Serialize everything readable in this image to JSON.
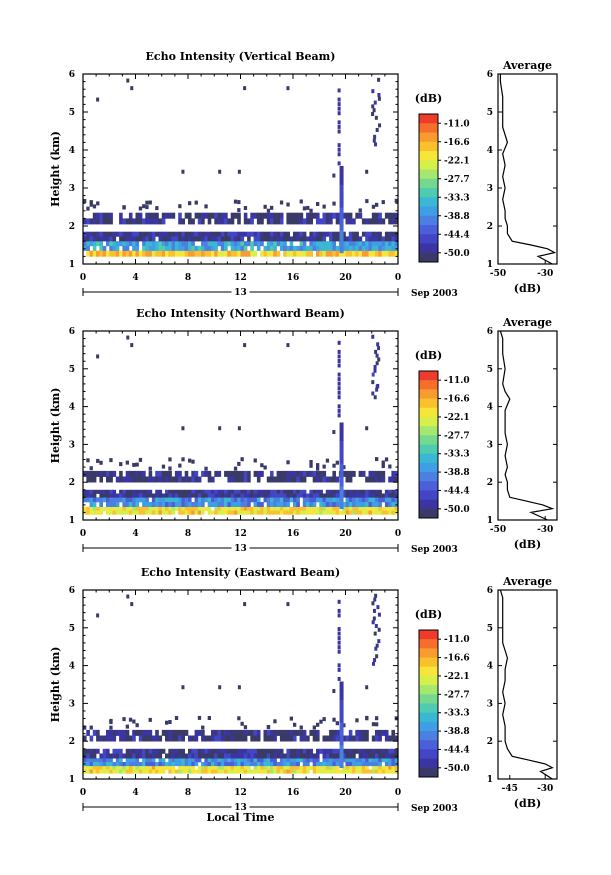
{
  "colorbar": {
    "unit_label": "(dB)",
    "tick_labels": [
      "-11.0",
      "-16.6",
      "-22.1",
      "-27.7",
      "-33.3",
      "-38.8",
      "-44.4",
      "-50.0"
    ],
    "colors": [
      "#ef3b2c",
      "#f66d2c",
      "#f99b30",
      "#fbc12d",
      "#f7e63a",
      "#d6ef4a",
      "#a6e86f",
      "#74d98f",
      "#4ecbb0",
      "#3ab8d3",
      "#3f9ee5",
      "#4b7fe0",
      "#4a5fd8",
      "#4346c4",
      "#3a35a2",
      "#3a3a68"
    ]
  },
  "chart_data": [
    {
      "type": "heatmap",
      "title": "Echo Intensity (Vertical Beam)",
      "xlabel": "",
      "ylabel": "Height (km)",
      "xlim": [
        0,
        24
      ],
      "ylim": [
        1,
        6
      ],
      "x_ticks": [
        "0",
        "4",
        "8",
        "12",
        "16",
        "20",
        "0"
      ],
      "y_ticks": [
        "1",
        "2",
        "3",
        "4",
        "5",
        "6"
      ],
      "date_bar": {
        "day": "13",
        "suffix": "Sep 2003"
      },
      "clim_db": [
        -50.0,
        -11.0
      ],
      "layers_db": [
        {
          "height_range_km": [
            1.2,
            1.35
          ],
          "value_db": -20
        },
        {
          "height_range_km": [
            1.35,
            1.6
          ],
          "value_db": -36
        },
        {
          "height_range_km": [
            1.6,
            1.85
          ],
          "value_db": -47
        },
        {
          "height_range_km": [
            2.05,
            2.35
          ],
          "value_db": -48
        }
      ],
      "average": {
        "title": "Average",
        "xlabel": "(dB)",
        "x_ticks": [
          "-50",
          "-30"
        ],
        "xlim": [
          -50,
          -25
        ],
        "height_km": [
          1.0,
          1.2,
          1.3,
          1.4,
          1.5,
          1.6,
          1.8,
          2.0,
          2.2,
          2.4,
          2.7,
          3.0,
          3.3,
          3.6,
          3.9,
          4.2,
          4.4,
          4.6,
          5.0,
          5.4,
          5.8,
          6.0
        ],
        "value_db": [
          -27,
          -33,
          -26,
          -29,
          -36,
          -44,
          -46,
          -46,
          -47,
          -47,
          -48,
          -47,
          -48,
          -47,
          -48,
          -46,
          -47,
          -48,
          -48,
          -48,
          -49,
          -49
        ]
      }
    },
    {
      "type": "heatmap",
      "title": "Echo Intensity (Northward Beam)",
      "xlabel": "",
      "ylabel": "Height (km)",
      "xlim": [
        0,
        24
      ],
      "ylim": [
        1,
        6
      ],
      "x_ticks": [
        "0",
        "4",
        "8",
        "12",
        "16",
        "20",
        "0"
      ],
      "y_ticks": [
        "1",
        "2",
        "3",
        "4",
        "5",
        "6"
      ],
      "date_bar": {
        "day": "13",
        "suffix": "Sep 2003"
      },
      "clim_db": [
        -50.0,
        -11.0
      ],
      "layers_db": [
        {
          "height_range_km": [
            1.15,
            1.35
          ],
          "value_db": -22
        },
        {
          "height_range_km": [
            1.35,
            1.6
          ],
          "value_db": -38
        },
        {
          "height_range_km": [
            1.6,
            1.8
          ],
          "value_db": -47
        },
        {
          "height_range_km": [
            2.0,
            2.3
          ],
          "value_db": -48
        }
      ],
      "average": {
        "title": "Average",
        "xlabel": "(dB)",
        "x_ticks": [
          "-50",
          "-30"
        ],
        "xlim": [
          -50,
          -25
        ],
        "height_km": [
          1.0,
          1.2,
          1.3,
          1.4,
          1.5,
          1.6,
          1.8,
          2.0,
          2.2,
          2.4,
          2.7,
          3.0,
          3.3,
          3.6,
          3.9,
          4.2,
          4.4,
          4.6,
          5.0,
          5.4,
          5.8,
          6.0
        ],
        "value_db": [
          -29,
          -36,
          -27,
          -31,
          -38,
          -45,
          -46,
          -46,
          -47,
          -46,
          -47,
          -46,
          -47,
          -47,
          -47,
          -45,
          -47,
          -48,
          -47,
          -48,
          -48,
          -49
        ]
      }
    },
    {
      "type": "heatmap",
      "title": "Echo Intensity (Eastward Beam)",
      "xlabel": "Local Time",
      "ylabel": "Height (km)",
      "xlim": [
        0,
        24
      ],
      "ylim": [
        1,
        6
      ],
      "x_ticks": [
        "0",
        "4",
        "8",
        "12",
        "16",
        "20",
        "0"
      ],
      "y_ticks": [
        "1",
        "2",
        "3",
        "4",
        "5",
        "6"
      ],
      "date_bar": {
        "day": "13",
        "suffix": "Sep 2003"
      },
      "clim_db": [
        -50.0,
        -11.0
      ],
      "layers_db": [
        {
          "height_range_km": [
            1.15,
            1.35
          ],
          "value_db": -22
        },
        {
          "height_range_km": [
            1.35,
            1.55
          ],
          "value_db": -38
        },
        {
          "height_range_km": [
            1.55,
            1.8
          ],
          "value_db": -47
        },
        {
          "height_range_km": [
            2.0,
            2.3
          ],
          "value_db": -48
        }
      ],
      "average": {
        "title": "Average",
        "xlabel": "(dB)",
        "x_ticks": [
          "-45",
          "-30"
        ],
        "xlim": [
          -50,
          -25
        ],
        "height_km": [
          1.0,
          1.2,
          1.3,
          1.4,
          1.5,
          1.6,
          1.8,
          2.0,
          2.2,
          2.4,
          2.7,
          3.0,
          3.3,
          3.6,
          3.9,
          4.2,
          4.4,
          4.6,
          5.0,
          5.4,
          5.8,
          6.0
        ],
        "value_db": [
          -27,
          -32,
          -27,
          -30,
          -37,
          -44,
          -46,
          -47,
          -47,
          -47,
          -48,
          -47,
          -48,
          -47,
          -47,
          -46,
          -47,
          -48,
          -48,
          -48,
          -48,
          -49
        ]
      }
    }
  ]
}
